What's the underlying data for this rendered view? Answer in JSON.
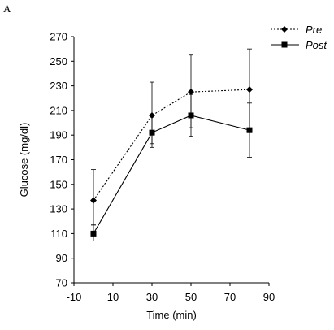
{
  "panel_label": "A",
  "chart_data": {
    "type": "line",
    "title": "",
    "xlabel": "Time (min)",
    "ylabel": "Glucose (mg/dl)",
    "xlim": [
      -10,
      90
    ],
    "ylim": [
      70,
      270
    ],
    "xticks": [
      -10,
      10,
      30,
      50,
      70,
      90
    ],
    "yticks": [
      70,
      90,
      110,
      130,
      150,
      170,
      190,
      210,
      230,
      250,
      270
    ],
    "x": [
      0,
      30,
      50,
      80
    ],
    "grid": false,
    "legend_position": "top-right",
    "series": [
      {
        "name": "Pre",
        "line_style": "dotted",
        "marker": "diamond",
        "color": "#000000",
        "values": [
          137,
          206,
          225,
          227
        ],
        "error_upper": [
          162,
          233,
          255,
          260
        ],
        "error_lower": [
          117,
          183,
          196,
          192
        ]
      },
      {
        "name": "Post",
        "line_style": "solid",
        "marker": "square",
        "color": "#000000",
        "values": [
          110,
          192,
          206,
          194
        ],
        "error_upper": [
          117,
          203,
          223,
          216
        ],
        "error_lower": [
          104,
          180,
          189,
          172
        ]
      }
    ]
  }
}
